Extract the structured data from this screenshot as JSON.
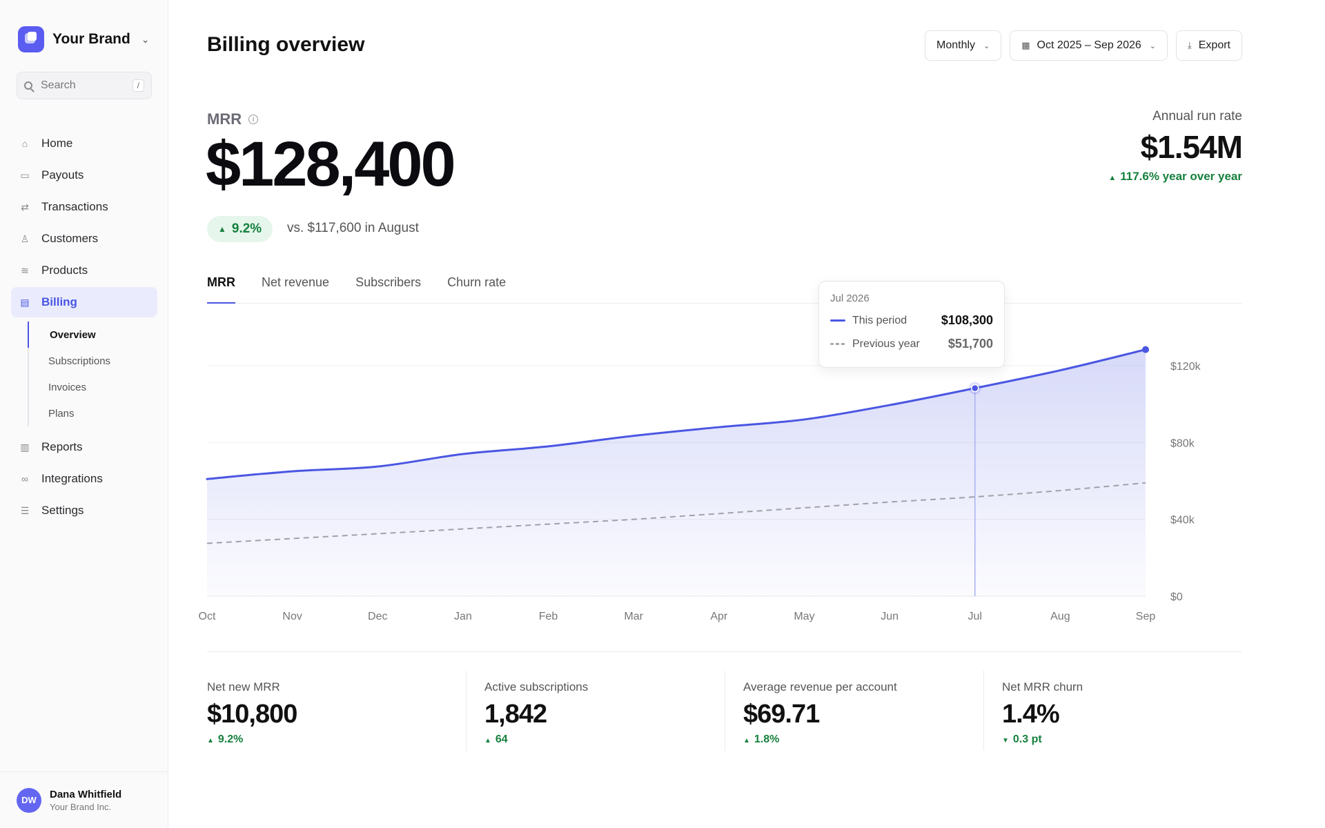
{
  "brand": {
    "name": "Your Brand"
  },
  "search": {
    "placeholder": "Search",
    "shortcut": "/"
  },
  "nav": {
    "home": "Home",
    "payouts": "Payouts",
    "transactions": "Transactions",
    "customers": "Customers",
    "products": "Products",
    "billing": "Billing",
    "billing_sub": {
      "overview": "Overview",
      "subscriptions": "Subscriptions",
      "invoices": "Invoices",
      "plans": "Plans"
    },
    "reports": "Reports",
    "integrations": "Integrations",
    "settings": "Settings"
  },
  "user": {
    "initials": "DW",
    "name": "Dana Whitfield",
    "org": "Your Brand Inc."
  },
  "header": {
    "title": "Billing overview",
    "period_select": "Monthly",
    "date_range": "Oct 2025 – Sep 2026",
    "export": "Export"
  },
  "mrr": {
    "label": "MRR",
    "value": "$128,400",
    "delta": "9.2%",
    "compare": "vs. $117,600 in August"
  },
  "arr": {
    "label": "Annual run rate",
    "value": "$1.54M",
    "delta": "117.6% year over year"
  },
  "tabs": {
    "mrr": "MRR",
    "net_revenue": "Net revenue",
    "subscribers": "Subscribers",
    "churn": "Churn rate"
  },
  "tooltip": {
    "date": "Jul 2026",
    "this_label": "This period",
    "this_value": "$108,300",
    "prev_label": "Previous year",
    "prev_value": "$51,700"
  },
  "colors": {
    "accent": "#4a56e2",
    "positive": "#15803d",
    "prev_line": "#a0a0a8"
  },
  "chart_data": {
    "type": "area",
    "categories": [
      "Oct",
      "Nov",
      "Dec",
      "Jan",
      "Feb",
      "Mar",
      "Apr",
      "May",
      "Jun",
      "Jul",
      "Aug",
      "Sep"
    ],
    "series": [
      {
        "name": "This period",
        "values": [
          61000,
          65000,
          67500,
          74000,
          78000,
          83500,
          88000,
          92000,
          99500,
          108300,
          117600,
          128400
        ]
      },
      {
        "name": "Previous year",
        "values": [
          27500,
          30000,
          32500,
          35000,
          37500,
          40000,
          43000,
          46000,
          49000,
          51700,
          55000,
          59000
        ]
      }
    ],
    "y_ticks": [
      "$0",
      "$40k",
      "$80k",
      "$120k"
    ],
    "ylim": [
      0,
      120000
    ],
    "highlight_index": 9,
    "grid": true
  },
  "stats": [
    {
      "label": "Net new MRR",
      "value": "$10,800",
      "delta": "9.2%",
      "direction": "up"
    },
    {
      "label": "Active subscriptions",
      "value": "1,842",
      "delta": "64",
      "direction": "up"
    },
    {
      "label": "Average revenue per account",
      "value": "$69.71",
      "delta": "1.8%",
      "direction": "up"
    },
    {
      "label": "Net MRR churn",
      "value": "1.4%",
      "delta": "0.3 pt",
      "direction": "down"
    }
  ]
}
